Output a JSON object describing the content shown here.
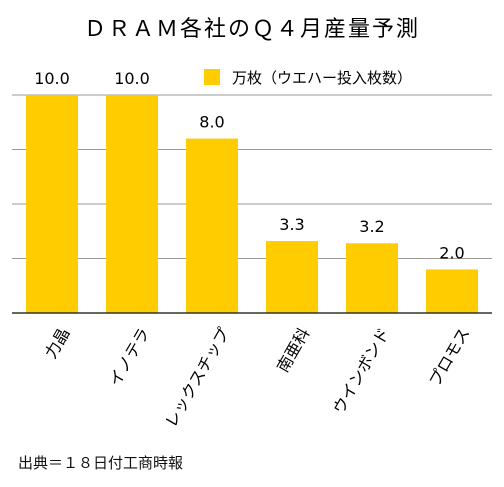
{
  "chart_data": {
    "type": "bar",
    "title": "ＤＲＡＭ各社のＱ４月産量予測",
    "legend": "万枚（ウエハー投入枚数）",
    "categories": [
      "力晶",
      "イノテラ",
      "レックスチップ",
      "南亜科",
      "ウインボンド",
      "プロモス"
    ],
    "values": [
      10.0,
      10.0,
      8.0,
      3.3,
      3.2,
      2.0
    ],
    "value_labels": [
      "10.0",
      "10.0",
      "8.0",
      "3.3",
      "3.2",
      "2.0"
    ],
    "ylim": [
      0,
      10
    ],
    "grid": true,
    "legend_position": "top-right",
    "bar_color": "#FFCC00",
    "grid_color": "#999999",
    "axis_color": "#333333"
  },
  "source": "出典＝１８日付工商時報"
}
